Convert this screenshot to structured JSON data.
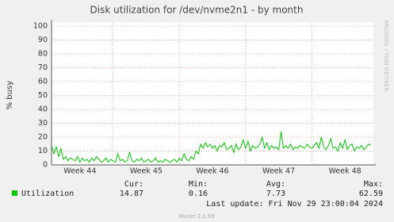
{
  "chart_data": {
    "type": "line",
    "title": "Disk utilization for /dev/nvme2n1 - by month",
    "y_label": "% busy",
    "side_text": "RRDTOOL / TOBI OETIKER",
    "x": [
      0,
      1,
      2,
      3,
      4,
      5,
      6,
      7,
      8,
      9,
      10,
      11,
      12,
      13,
      14,
      15,
      16,
      17,
      18,
      19,
      20,
      21,
      22,
      23,
      24,
      25,
      26,
      27,
      28,
      29,
      30,
      31,
      32,
      33,
      34,
      35,
      36,
      37,
      38,
      39,
      40,
      41,
      42,
      43,
      44,
      45,
      46,
      47,
      48,
      49,
      50,
      51,
      52,
      53,
      54,
      55,
      56,
      57,
      58,
      59,
      60,
      61,
      62,
      63,
      64,
      65,
      66,
      67,
      68,
      69,
      70,
      71,
      72,
      73,
      74,
      75,
      76,
      77,
      78,
      79,
      80,
      81,
      82,
      83,
      84,
      85,
      86,
      87,
      88,
      89,
      90,
      91,
      92,
      93,
      94,
      95,
      96,
      97,
      98,
      99,
      100,
      101,
      102,
      103,
      104,
      105,
      106,
      107,
      108,
      109,
      110,
      111,
      112,
      113,
      114,
      115,
      116,
      117,
      118,
      119,
      120,
      121,
      122,
      123,
      124,
      125,
      126,
      127,
      128,
      129,
      130,
      131,
      132,
      133,
      134,
      135
    ],
    "series": [
      {
        "name": "Utilization",
        "color": "#00cc00",
        "values": [
          14,
          8,
          13,
          6,
          12,
          4,
          6,
          3,
          5,
          4,
          3,
          6,
          2,
          5,
          3,
          4,
          2,
          5,
          3,
          6,
          4,
          2,
          3,
          5,
          2,
          4,
          3,
          2,
          8,
          3,
          4,
          2,
          3,
          9,
          3,
          2,
          4,
          3,
          5,
          2,
          3,
          4,
          2,
          3,
          5,
          2,
          3,
          2,
          4,
          3,
          2,
          3,
          4,
          2,
          5,
          3,
          8,
          4,
          3,
          6,
          4,
          10,
          8,
          15,
          12,
          16,
          13,
          15,
          12,
          14,
          10,
          14,
          13,
          16,
          11,
          12,
          14,
          9,
          15,
          11,
          13,
          18,
          12,
          17,
          10,
          14,
          12,
          13,
          15,
          20,
          12,
          16,
          11,
          14,
          12,
          13,
          11,
          24,
          12,
          14,
          12,
          15,
          11,
          13,
          12,
          14,
          13,
          12,
          15,
          13,
          12,
          14,
          16,
          12,
          20,
          13,
          11,
          14,
          19,
          12,
          13,
          10,
          16,
          12,
          18,
          11,
          14,
          15,
          10,
          13,
          12,
          14,
          11,
          13,
          15,
          14
        ]
      }
    ],
    "xlim": [
      0,
      135
    ],
    "xticks": [
      {
        "value": 12,
        "label": "Week 44"
      },
      {
        "value": 40,
        "label": "Week 45"
      },
      {
        "value": 68,
        "label": "Week 46"
      },
      {
        "value": 96,
        "label": "Week 47"
      },
      {
        "value": 124,
        "label": "Week 48"
      }
    ],
    "ylim": [
      0,
      100
    ],
    "yticks": [
      0,
      10,
      20,
      30,
      40,
      50,
      60,
      70,
      80,
      90,
      100
    ],
    "grid": true,
    "summary": {
      "headers": [
        "Cur:",
        "Min:",
        "Avg:",
        "Max:"
      ],
      "values": [
        14.87,
        0.16,
        7.73,
        62.59
      ]
    },
    "last_update": "Last update: Fri Nov 29 23:00:04 2024",
    "footer": "Munin 2.0.69"
  }
}
